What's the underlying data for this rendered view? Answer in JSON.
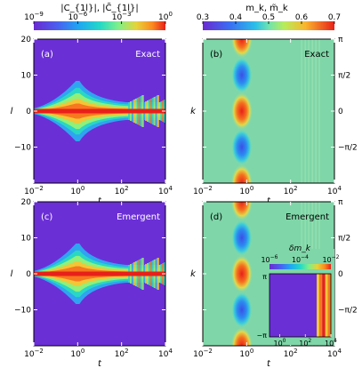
{
  "chart_data": [
    {
      "type": "heatmap",
      "panel_label": "(a)",
      "annotation": "Exact",
      "xlabel": "t",
      "ylabel": "l",
      "x_scale": "log",
      "xlim": [
        0.01,
        10000
      ],
      "ylim": [
        -20,
        20
      ],
      "x_ticks": [
        0.01,
        1,
        100,
        10000
      ],
      "x_tick_labels": [
        "10",
        "10",
        "10",
        "10"
      ],
      "x_tick_exponents": [
        "−2",
        "0",
        "2",
        "4"
      ],
      "y_ticks": [
        20,
        10,
        0,
        -10
      ],
      "y_tick_labels": [
        "20",
        "10",
        "0",
        "−10"
      ],
      "colorbar": {
        "label": "|C_{1l}|, |C̃_{1l}|",
        "scale": "log",
        "range": [
          1e-09,
          1
        ],
        "tick_labels": [
          "10",
          "10",
          "10",
          "10"
        ],
        "tick_exponents": [
          "−9",
          "−6",
          "−3",
          "0"
        ]
      }
    },
    {
      "type": "heatmap",
      "panel_label": "(b)",
      "annotation": "Exact",
      "xlabel": "t",
      "ylabel": "k",
      "x_scale": "log",
      "xlim": [
        0.01,
        10000
      ],
      "ylim": [
        -3.14159,
        3.14159
      ],
      "x_ticks": [
        0.01,
        1,
        100,
        10000
      ],
      "x_tick_labels": [
        "10",
        "10",
        "10",
        "10"
      ],
      "x_tick_exponents": [
        "−2",
        "0",
        "2",
        "4"
      ],
      "y_ticks": [
        3.14159,
        1.5708,
        0,
        -1.5708
      ],
      "y_tick_labels": [
        "π",
        "π/2",
        "0",
        "−π/2"
      ],
      "colorbar": {
        "label": "m_k, m̃_k",
        "scale": "linear",
        "range": [
          0.3,
          0.7
        ],
        "ticks": [
          0.3,
          0.4,
          0.5,
          0.6,
          0.7
        ],
        "tick_labels": [
          "0.3",
          "0.4",
          "0.5",
          "0.6",
          "0.7"
        ]
      }
    },
    {
      "type": "heatmap",
      "panel_label": "(c)",
      "annotation": "Emergent",
      "xlabel": "t",
      "ylabel": "l",
      "x_scale": "log",
      "xlim": [
        0.01,
        10000
      ],
      "ylim": [
        -20,
        20
      ],
      "x_ticks": [
        0.01,
        1,
        100,
        10000
      ],
      "x_tick_labels": [
        "10",
        "10",
        "10",
        "10"
      ],
      "x_tick_exponents": [
        "−2",
        "0",
        "2",
        "4"
      ],
      "y_ticks": [
        20,
        10,
        0,
        -10
      ],
      "y_tick_labels": [
        "20",
        "10",
        "0",
        "−10"
      ]
    },
    {
      "type": "heatmap",
      "panel_label": "(d)",
      "annotation": "Emergent",
      "xlabel": "t",
      "ylabel": "k",
      "x_scale": "log",
      "xlim": [
        0.01,
        10000
      ],
      "ylim": [
        -3.14159,
        3.14159
      ],
      "x_ticks": [
        0.01,
        1,
        100,
        10000
      ],
      "x_tick_labels": [
        "10",
        "10",
        "10",
        "10"
      ],
      "x_tick_exponents": [
        "−2",
        "0",
        "2",
        "4"
      ],
      "y_ticks": [
        3.14159,
        1.5708,
        0,
        -1.5708
      ],
      "y_tick_labels": [
        "π",
        "π/2",
        "0",
        "−π/2"
      ],
      "inset": {
        "type": "heatmap",
        "colorbar_label": "δm_k",
        "colorbar_scale": "log",
        "colorbar_range": [
          1e-06,
          0.01
        ],
        "colorbar_tick_labels": [
          "10",
          "10",
          "10"
        ],
        "colorbar_tick_exponents": [
          "−6",
          "−4",
          "−2"
        ],
        "y_tick_labels": [
          "π",
          "−π"
        ],
        "x_ticks": [
          1,
          100,
          10000
        ],
        "x_tick_labels": [
          "10",
          "10",
          "10"
        ],
        "x_tick_exponents": [
          "0",
          "2",
          "4"
        ]
      }
    }
  ],
  "colors": {
    "background": "#6b2fd6",
    "ridge": "#e8201a",
    "band_high": "#ee3a1a",
    "band_low": "#2f7fe8",
    "mid": "#7fd6a8"
  }
}
